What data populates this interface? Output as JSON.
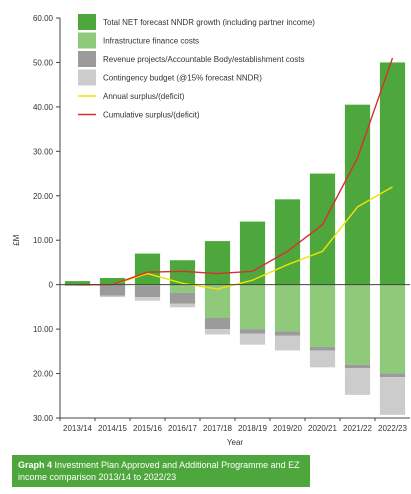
{
  "chart_data": {
    "type": "bar",
    "xlabel": "Year",
    "ylabel": "£M",
    "ylim": [
      -30,
      60
    ],
    "yticks": [
      {
        "value": 60,
        "label": "60.00"
      },
      {
        "value": 50,
        "label": "50.00"
      },
      {
        "value": 40,
        "label": "40.00"
      },
      {
        "value": 30,
        "label": "30.00"
      },
      {
        "value": 20,
        "label": "20.00"
      },
      {
        "value": 10,
        "label": "10.00"
      },
      {
        "value": 0,
        "label": "0"
      },
      {
        "value": -10,
        "label": "10.00"
      },
      {
        "value": -20,
        "label": "20.00"
      },
      {
        "value": -30,
        "label": "30.00"
      }
    ],
    "categories": [
      "2013/14",
      "2014/15",
      "2015/16",
      "2016/17",
      "2017/18",
      "2018/19",
      "2019/20",
      "2020/21",
      "2021/22",
      "2022/23"
    ],
    "bar_series": [
      {
        "name": "Total NET forecast NNDR growth (including partner income)",
        "color": "#4ea73c",
        "direction": "up",
        "values": [
          0.8,
          1.5,
          7.0,
          5.5,
          9.8,
          14.2,
          19.2,
          25.0,
          40.5,
          50.0
        ]
      },
      {
        "name": "Infrastructure finance costs",
        "color": "#8fc97a",
        "direction": "down",
        "values": [
          0,
          0,
          0.3,
          1.8,
          7.5,
          10.0,
          10.5,
          14.0,
          18.0,
          20.0
        ]
      },
      {
        "name": "Revenue projects/Accountable Body/establishment costs",
        "color": "#9b9b9b",
        "direction": "down",
        "values": [
          0.2,
          2.5,
          2.5,
          2.5,
          2.5,
          1.0,
          1.0,
          0.8,
          0.8,
          0.8
        ]
      },
      {
        "name": "Contingency budget (@15% forecast NNDR)",
        "color": "#cccccc",
        "direction": "down",
        "values": [
          0.1,
          0.3,
          0.8,
          0.8,
          1.2,
          2.5,
          3.3,
          3.8,
          6.0,
          8.5
        ]
      }
    ],
    "line_series": [
      {
        "name": "Annual surplus/(deficit)",
        "color": "#f0e400",
        "values": [
          0.0,
          0.0,
          2.5,
          0.3,
          -1.0,
          1.0,
          4.5,
          7.5,
          17.5,
          22.0
        ]
      },
      {
        "name": "Cumulative surplus/(deficit)",
        "color": "#d7312e",
        "values": [
          0.0,
          0.0,
          2.8,
          3.0,
          2.5,
          3.0,
          7.5,
          13.5,
          28.5,
          51.0
        ]
      }
    ],
    "legend_position": "top-left",
    "grid": false
  },
  "caption": {
    "label": "Graph 4",
    "text": "Investment Plan Approved and Additional Programme and EZ income comparison 2013/14 to 2022/23"
  }
}
